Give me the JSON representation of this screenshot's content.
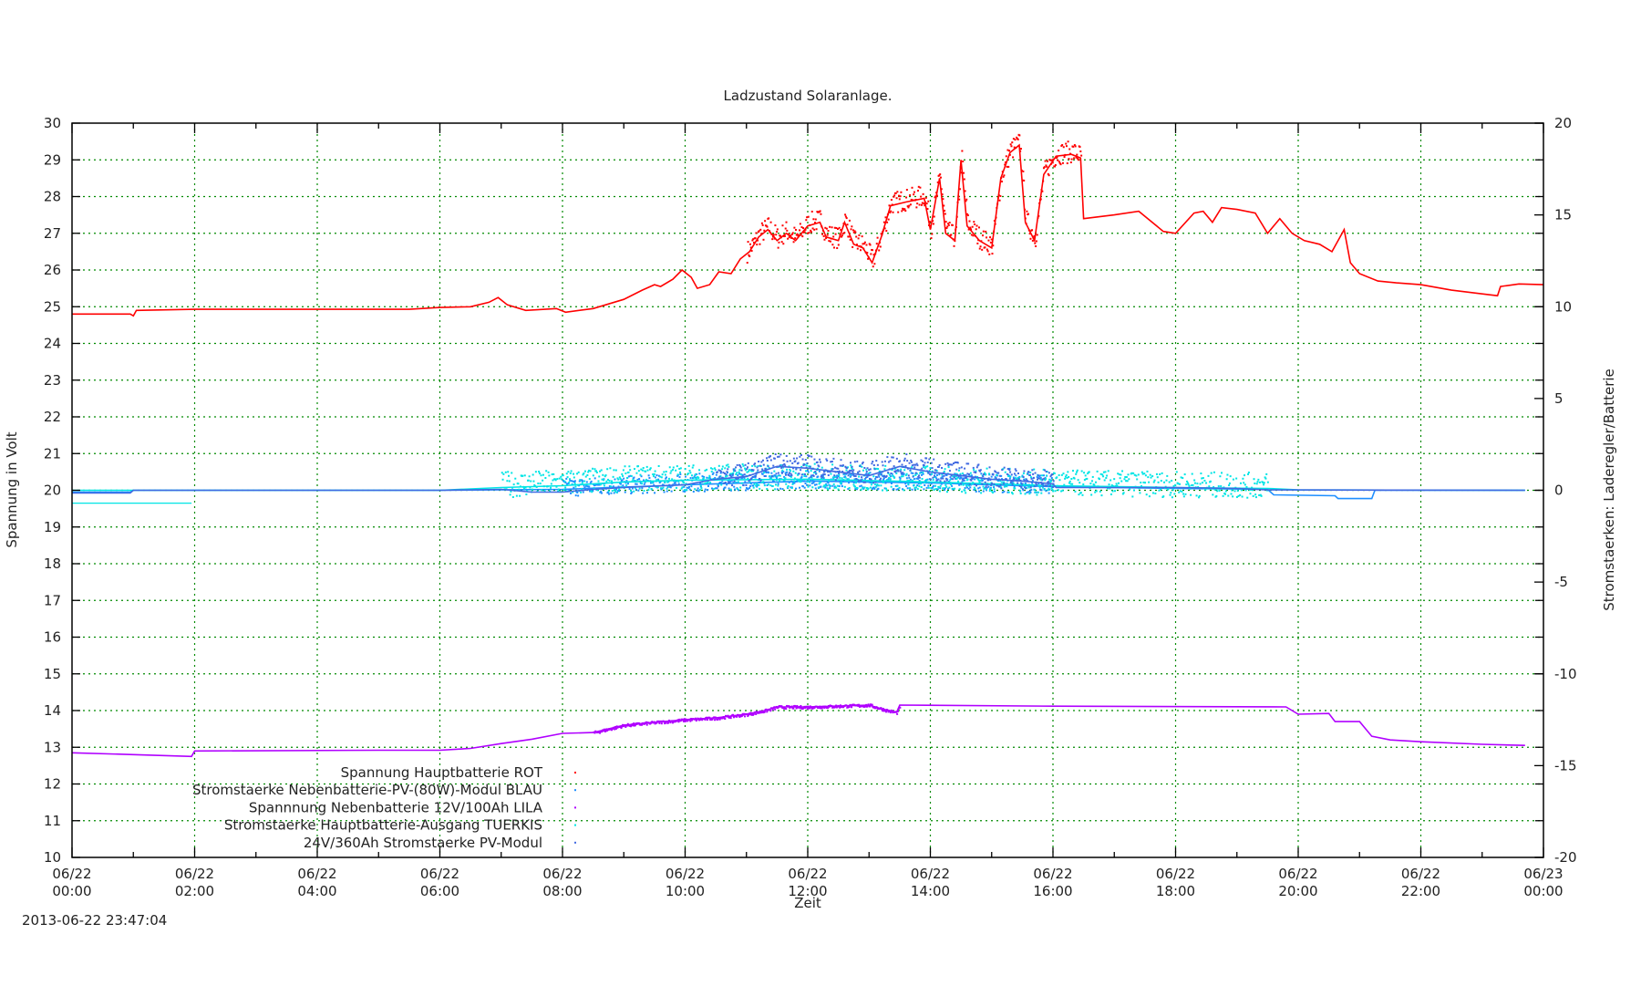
{
  "chart_data": {
    "type": "line",
    "title": "Ladzustand Solaranlage.",
    "xlabel": "Zeit",
    "ylabel": "Spannung in Volt",
    "y2label": "Stromstaerken: Laderegler/Batterie",
    "timestamp": "2013-06-22 23:47:04",
    "xlim_hours": [
      0,
      24
    ],
    "ylim": [
      10,
      30
    ],
    "y2lim": [
      -20,
      20
    ],
    "grid": true,
    "legend_placement": "bottom-left",
    "x_ticks": [
      {
        "hour": 0,
        "date": "06/22",
        "time": "00:00"
      },
      {
        "hour": 2,
        "date": "06/22",
        "time": "02:00"
      },
      {
        "hour": 4,
        "date": "06/22",
        "time": "04:00"
      },
      {
        "hour": 6,
        "date": "06/22",
        "time": "06:00"
      },
      {
        "hour": 8,
        "date": "06/22",
        "time": "08:00"
      },
      {
        "hour": 10,
        "date": "06/22",
        "time": "10:00"
      },
      {
        "hour": 12,
        "date": "06/22",
        "time": "12:00"
      },
      {
        "hour": 14,
        "date": "06/22",
        "time": "14:00"
      },
      {
        "hour": 16,
        "date": "06/22",
        "time": "16:00"
      },
      {
        "hour": 18,
        "date": "06/22",
        "time": "18:00"
      },
      {
        "hour": 20,
        "date": "06/22",
        "time": "20:00"
      },
      {
        "hour": 22,
        "date": "06/22",
        "time": "22:00"
      },
      {
        "hour": 24,
        "date": "06/23",
        "time": "00:00"
      }
    ],
    "y_ticks": [
      "10",
      "11",
      "12",
      "13",
      "14",
      "15",
      "16",
      "17",
      "18",
      "19",
      "20",
      "21",
      "22",
      "23",
      "24",
      "25",
      "26",
      "27",
      "28",
      "29",
      "30"
    ],
    "y2_ticks": [
      "-20",
      "-15",
      "-10",
      "-5",
      "0",
      "5",
      "10",
      "15",
      "20"
    ],
    "series": [
      {
        "name": "Spannung Hauptbatterie ROT",
        "color": "#ff0000",
        "axis": "y",
        "points": [
          [
            0,
            24.8
          ],
          [
            0.95,
            24.8
          ],
          [
            1.0,
            24.75
          ],
          [
            1.05,
            24.9
          ],
          [
            2,
            24.93
          ],
          [
            4,
            24.93
          ],
          [
            5.5,
            24.93
          ],
          [
            6,
            24.98
          ],
          [
            6.5,
            25.0
          ],
          [
            6.8,
            25.12
          ],
          [
            6.95,
            25.25
          ],
          [
            7.1,
            25.05
          ],
          [
            7.4,
            24.9
          ],
          [
            7.9,
            24.95
          ],
          [
            8.05,
            24.85
          ],
          [
            8.5,
            24.95
          ],
          [
            9.0,
            25.2
          ],
          [
            9.3,
            25.45
          ],
          [
            9.5,
            25.6
          ],
          [
            9.6,
            25.55
          ],
          [
            9.8,
            25.75
          ],
          [
            9.95,
            26.0
          ],
          [
            10.1,
            25.8
          ],
          [
            10.2,
            25.5
          ],
          [
            10.4,
            25.6
          ],
          [
            10.55,
            25.95
          ],
          [
            10.75,
            25.9
          ],
          [
            10.9,
            26.3
          ],
          [
            11.05,
            26.5
          ],
          [
            11.2,
            26.9
          ],
          [
            11.35,
            27.1
          ],
          [
            11.5,
            26.8
          ],
          [
            11.65,
            27.0
          ],
          [
            11.8,
            26.8
          ],
          [
            12.0,
            27.2
          ],
          [
            12.2,
            27.3
          ],
          [
            12.3,
            26.9
          ],
          [
            12.5,
            26.8
          ],
          [
            12.6,
            27.3
          ],
          [
            12.75,
            26.7
          ],
          [
            12.9,
            26.6
          ],
          [
            13.05,
            26.2
          ],
          [
            13.2,
            26.9
          ],
          [
            13.35,
            27.75
          ],
          [
            13.6,
            27.85
          ],
          [
            13.9,
            27.95
          ],
          [
            14.0,
            27.1
          ],
          [
            14.15,
            28.5
          ],
          [
            14.25,
            27.0
          ],
          [
            14.4,
            26.8
          ],
          [
            14.5,
            29.0
          ],
          [
            14.6,
            27.2
          ],
          [
            14.8,
            26.8
          ],
          [
            15.0,
            26.6
          ],
          [
            15.15,
            28.5
          ],
          [
            15.3,
            29.2
          ],
          [
            15.45,
            29.4
          ],
          [
            15.55,
            27.3
          ],
          [
            15.7,
            26.8
          ],
          [
            15.85,
            28.6
          ],
          [
            16.05,
            29.1
          ],
          [
            16.3,
            29.15
          ],
          [
            16.45,
            29.05
          ],
          [
            16.5,
            27.4
          ],
          [
            17.0,
            27.5
          ],
          [
            17.4,
            27.6
          ],
          [
            17.8,
            27.05
          ],
          [
            18.0,
            27.0
          ],
          [
            18.3,
            27.55
          ],
          [
            18.45,
            27.6
          ],
          [
            18.6,
            27.3
          ],
          [
            18.75,
            27.7
          ],
          [
            19.0,
            27.65
          ],
          [
            19.3,
            27.55
          ],
          [
            19.5,
            27.0
          ],
          [
            19.7,
            27.4
          ],
          [
            19.9,
            27.0
          ],
          [
            20.1,
            26.8
          ],
          [
            20.35,
            26.7
          ],
          [
            20.55,
            26.5
          ],
          [
            20.75,
            27.1
          ],
          [
            20.85,
            26.2
          ],
          [
            21.0,
            25.9
          ],
          [
            21.3,
            25.7
          ],
          [
            21.6,
            25.65
          ],
          [
            22.0,
            25.6
          ],
          [
            22.5,
            25.45
          ],
          [
            23.0,
            25.35
          ],
          [
            23.25,
            25.3
          ],
          [
            23.3,
            25.55
          ],
          [
            23.6,
            25.62
          ],
          [
            24.0,
            25.6
          ]
        ],
        "noise": [
          [
            11,
            16.45,
            0.6
          ]
        ]
      },
      {
        "name": "Stromstaerke Nebenbatterie-PV-(80W)-Modul BLAU",
        "color": "#1e8fff",
        "axis": "y2",
        "points": [
          [
            0,
            -0.1
          ],
          [
            0.95,
            -0.1
          ],
          [
            1.0,
            0
          ],
          [
            6,
            0
          ],
          [
            8,
            0.05
          ],
          [
            10,
            0.3
          ],
          [
            12,
            0.5
          ],
          [
            14,
            0.4
          ],
          [
            16,
            0.2
          ],
          [
            18,
            0.1
          ],
          [
            19.5,
            0.05
          ],
          [
            19.6,
            -0.25
          ],
          [
            20.6,
            -0.3
          ],
          [
            20.65,
            -0.45
          ],
          [
            21.2,
            -0.45
          ],
          [
            21.25,
            0
          ],
          [
            23.7,
            0
          ]
        ],
        "noise": [
          [
            8,
            16,
            0.5
          ]
        ]
      },
      {
        "name": "Spannnung Nebenbatterie 12V/100Ah LILA",
        "color": "#b000ff",
        "axis": "y",
        "points": [
          [
            0,
            12.85
          ],
          [
            1.0,
            12.8
          ],
          [
            1.95,
            12.75
          ],
          [
            2.0,
            12.9
          ],
          [
            5,
            12.92
          ],
          [
            6.0,
            12.92
          ],
          [
            6.5,
            12.97
          ],
          [
            7.0,
            13.1
          ],
          [
            7.5,
            13.22
          ],
          [
            8.0,
            13.38
          ],
          [
            8.5,
            13.4
          ],
          [
            9.0,
            13.6
          ],
          [
            9.5,
            13.68
          ],
          [
            10,
            13.75
          ],
          [
            10.5,
            13.8
          ],
          [
            11,
            13.9
          ],
          [
            11.3,
            14.0
          ],
          [
            11.5,
            14.1
          ],
          [
            12,
            14.1
          ],
          [
            13,
            14.15
          ],
          [
            13.3,
            14.0
          ],
          [
            13.45,
            13.95
          ],
          [
            13.5,
            14.15
          ],
          [
            16,
            14.12
          ],
          [
            19.8,
            14.1
          ],
          [
            20.0,
            13.9
          ],
          [
            20.5,
            13.92
          ],
          [
            20.6,
            13.7
          ],
          [
            21.0,
            13.7
          ],
          [
            21.2,
            13.3
          ],
          [
            21.5,
            13.2
          ],
          [
            22,
            13.15
          ],
          [
            23.0,
            13.08
          ],
          [
            23.7,
            13.05
          ]
        ],
        "noise": [
          [
            8.5,
            13.5,
            0.08
          ]
        ]
      },
      {
        "name": "Stromstaerke Hauptbatterie-Ausgang TUERKIS",
        "color": "#00e5e5",
        "axis": "y2",
        "points": [
          [
            0,
            0
          ],
          [
            6,
            0
          ],
          [
            7,
            0.15
          ],
          [
            8,
            0.25
          ],
          [
            9,
            0.45
          ],
          [
            10,
            0.55
          ],
          [
            12,
            0.6
          ],
          [
            14,
            0.45
          ],
          [
            16,
            0.25
          ],
          [
            18,
            0.15
          ],
          [
            19.5,
            0.1
          ],
          [
            20,
            0.02
          ],
          [
            23.7,
            0
          ]
        ],
        "extra_segment": [
          [
            0,
            -0.7
          ],
          [
            1.95,
            -0.7
          ]
        ],
        "noise": [
          [
            7,
            19.5,
            0.7
          ]
        ]
      },
      {
        "name": "24V/360Ah Stromstaerke PV-Modul",
        "color": "#4169e1",
        "axis": "y2",
        "points": [
          [
            0,
            -0.15
          ],
          [
            0.95,
            -0.15
          ],
          [
            1.0,
            0
          ],
          [
            6,
            0
          ],
          [
            7,
            0.05
          ],
          [
            7.5,
            -0.1
          ],
          [
            8,
            -0.1
          ],
          [
            8.5,
            0.05
          ],
          [
            9,
            0.15
          ],
          [
            10,
            0.3
          ],
          [
            10.5,
            0.6
          ],
          [
            11,
            0.75
          ],
          [
            11.5,
            1.3
          ],
          [
            12,
            1.2
          ],
          [
            12.5,
            1.0
          ],
          [
            13,
            0.8
          ],
          [
            13.5,
            1.3
          ],
          [
            14,
            1.0
          ],
          [
            14.5,
            0.8
          ],
          [
            15,
            0.6
          ],
          [
            15.5,
            0.5
          ],
          [
            16,
            0.35
          ],
          [
            16.05,
            0.15
          ],
          [
            17,
            0.15
          ],
          [
            18,
            0.15
          ],
          [
            19,
            0.1
          ],
          [
            19.5,
            0.02
          ],
          [
            23.7,
            0
          ]
        ],
        "noise": [
          [
            10.5,
            16,
            0.6
          ]
        ]
      }
    ]
  }
}
